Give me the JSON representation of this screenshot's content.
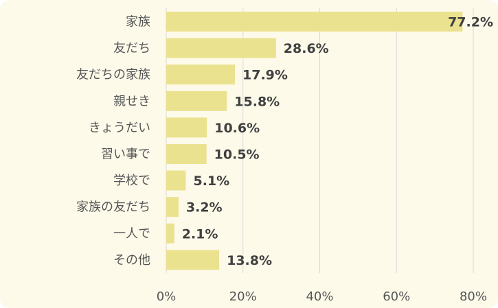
{
  "colors": {
    "background": "#fdfaea",
    "bar": "#ebe28f",
    "grid": "#d9d9d9",
    "text": "#555555",
    "value_text": "#404040"
  },
  "chart_data": {
    "type": "bar",
    "orientation": "horizontal",
    "categories": [
      "家族",
      "友だち",
      "友だちの家族",
      "親せき",
      "きょうだい",
      "習い事で",
      "学校で",
      "家族の友だち",
      "一人で",
      "その他"
    ],
    "values": [
      77.2,
      28.6,
      17.9,
      15.8,
      10.6,
      10.5,
      5.1,
      3.2,
      2.1,
      13.8
    ],
    "value_labels": [
      "77.2%",
      "28.6%",
      "17.9%",
      "15.8%",
      "10.6%",
      "10.5%",
      "5.1%",
      "3.2%",
      "2.1%",
      "13.8%"
    ],
    "xlim": [
      0,
      80
    ],
    "x_ticks": [
      0,
      20,
      40,
      60,
      80
    ],
    "x_tick_labels": [
      "0%",
      "20%",
      "40%",
      "60%",
      "80%"
    ],
    "grid": "vertical",
    "legend": "none",
    "title": "",
    "xlabel": "",
    "ylabel": ""
  }
}
